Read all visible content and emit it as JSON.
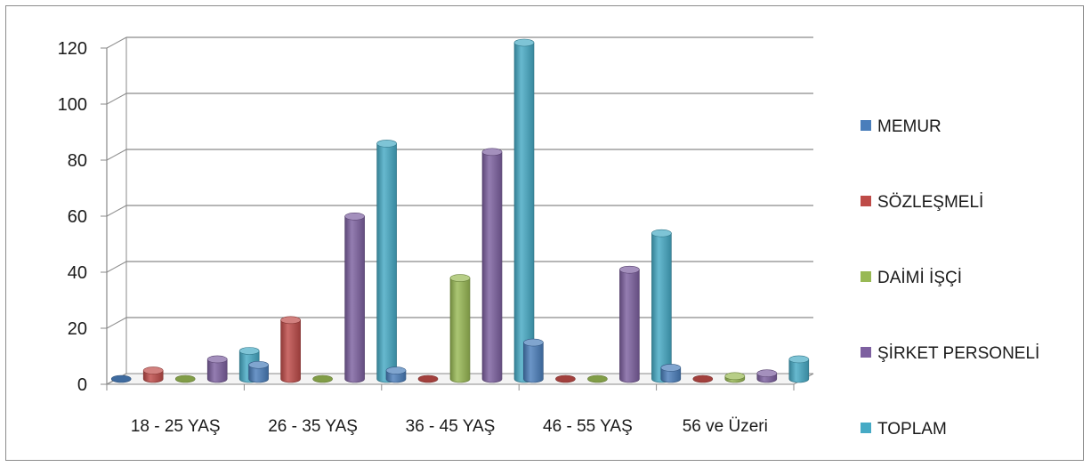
{
  "chart_data": {
    "type": "bar",
    "title": "",
    "xlabel": "",
    "ylabel": "",
    "categories": [
      "18 - 25 YAŞ",
      "26 - 35 YAŞ",
      "36 - 45 YAŞ",
      "46 - 55 YAŞ",
      "56 ve Üzeri"
    ],
    "ylim": [
      0,
      120
    ],
    "yticks": [
      "0",
      "20",
      "40",
      "60",
      "80",
      "100",
      "120"
    ],
    "grid": true,
    "legend_position": "right",
    "series": [
      {
        "name": "MEMUR",
        "color": "#4a7ebb",
        "values": [
          0,
          5,
          3,
          13,
          4
        ]
      },
      {
        "name": "SÖZLEŞMELİ",
        "color": "#be4b48",
        "values": [
          3,
          21,
          0,
          0,
          0
        ]
      },
      {
        "name": "DAİMİ İŞÇİ",
        "color": "#98b954",
        "values": [
          0,
          0,
          36,
          0,
          1
        ]
      },
      {
        "name": "ŞİRKET PERSONELİ",
        "color": "#7d60a0",
        "values": [
          7,
          58,
          81,
          39,
          2
        ]
      },
      {
        "name": "TOPLAM",
        "color": "#46aac5",
        "values": [
          10,
          84,
          120,
          52,
          7
        ]
      }
    ]
  }
}
